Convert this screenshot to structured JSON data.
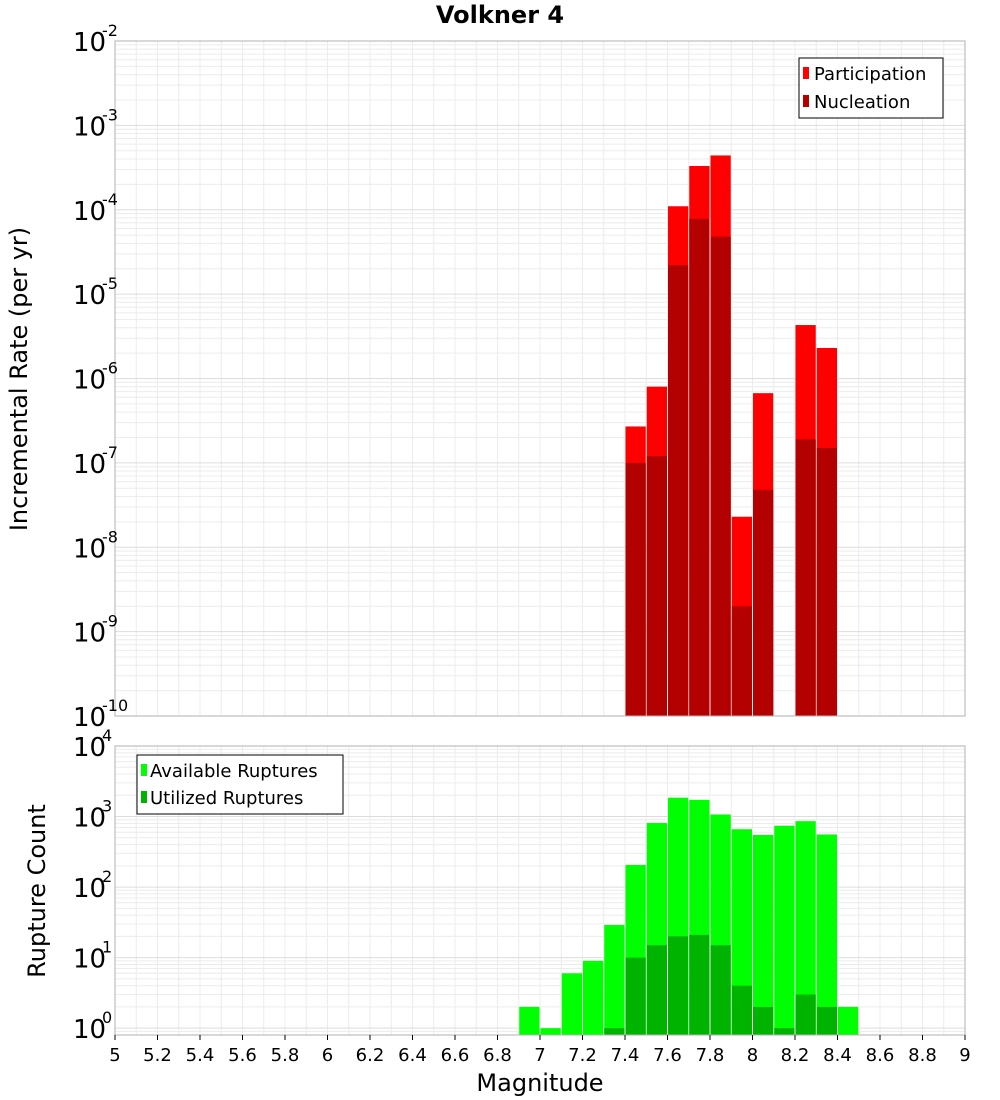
{
  "chart_data": [
    {
      "type": "bar",
      "title": "Volkner 4",
      "xlabel": "Magnitude",
      "ylabel": "Incremental Rate (per yr)",
      "yscale": "log",
      "xlim": [
        5,
        9
      ],
      "ylim": [
        1e-10,
        0.01
      ],
      "ytick_exponents": [
        -10,
        -9,
        -8,
        -7,
        -6,
        -5,
        -4,
        -3,
        -2
      ],
      "bin_width": 0.1,
      "grid": true,
      "legend_position": "top-right",
      "series": [
        {
          "name": "Participation",
          "color": "#ff0000",
          "x": [
            7.45,
            7.55,
            7.65,
            7.75,
            7.85,
            7.95,
            8.05,
            8.25,
            8.35
          ],
          "values": [
            2.7e-07,
            8e-07,
            0.00011,
            0.00033,
            0.00044,
            2.3e-08,
            6.7e-07,
            4.3e-06,
            2.3e-06
          ]
        },
        {
          "name": "Nucleation",
          "color": "#b30000",
          "x": [
            7.45,
            7.55,
            7.65,
            7.75,
            7.85,
            7.95,
            8.05,
            8.25,
            8.35
          ],
          "values": [
            1e-07,
            1.2e-07,
            2.2e-05,
            7.8e-05,
            4.8e-05,
            2e-09,
            4.8e-08,
            1.9e-07,
            1.5e-07
          ]
        }
      ]
    },
    {
      "type": "bar",
      "xlabel": "Magnitude",
      "ylabel": "Rupture Count",
      "yscale": "log",
      "xlim": [
        5,
        9
      ],
      "ylim": [
        0.8,
        10000
      ],
      "ytick_exponents": [
        0,
        1,
        2,
        3,
        4
      ],
      "xticks": [
        "5",
        "5.2",
        "5.4",
        "5.6",
        "5.8",
        "6",
        "6.2",
        "6.4",
        "6.6",
        "6.8",
        "7",
        "7.2",
        "7.4",
        "7.6",
        "7.8",
        "8",
        "8.2",
        "8.4",
        "8.6",
        "8.8",
        "9"
      ],
      "bin_width": 0.1,
      "grid": true,
      "legend_position": "top-left",
      "series": [
        {
          "name": "Available Ruptures",
          "color": "#00ff00",
          "x": [
            6.95,
            7.05,
            7.15,
            7.25,
            7.35,
            7.45,
            7.55,
            7.65,
            7.75,
            7.85,
            7.95,
            8.05,
            8.15,
            8.25,
            8.35,
            8.45
          ],
          "values": [
            2,
            1,
            6,
            9,
            29,
            206,
            809,
            1850,
            1720,
            1070,
            661,
            548,
            740,
            860,
            557,
            2
          ]
        },
        {
          "name": "Utilized Ruptures",
          "color": "#00b300",
          "x": [
            7.35,
            7.45,
            7.55,
            7.65,
            7.75,
            7.85,
            7.95,
            8.05,
            8.15,
            8.25,
            8.35
          ],
          "values": [
            1,
            10,
            15,
            20,
            21,
            15,
            4,
            2,
            1,
            3,
            2
          ]
        }
      ]
    }
  ]
}
